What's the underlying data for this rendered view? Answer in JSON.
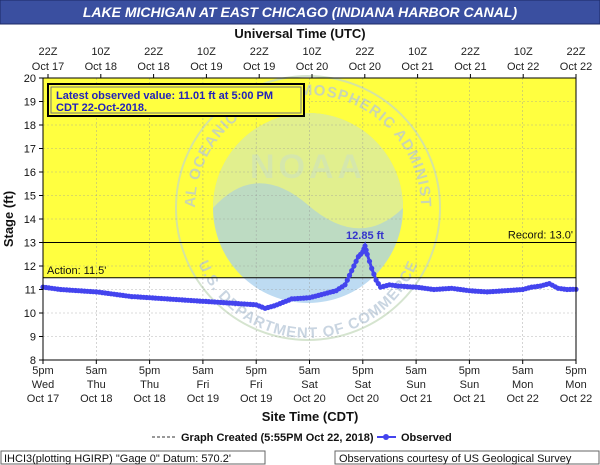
{
  "colors": {
    "title_bar": "#3a4fa0",
    "title_text": "#ffffff",
    "plot_fill": "#ffff40",
    "below_fill": "#ffffff",
    "series": "#4444ee",
    "action_line": "#000000",
    "record_line": "#000000",
    "peak_label": "#3333cc",
    "watermark_circle": "#a8d0ee",
    "watermark_text": "#b0c4dc"
  },
  "chart_data": {
    "type": "line",
    "title": "LAKE MICHIGAN AT EAST CHICAGO (INDIANA HARBOR CANAL)",
    "top_axis_title": "Universal Time (UTC)",
    "top_ticks": [
      {
        "top": "22Z",
        "bottom": "Oct 17"
      },
      {
        "top": "10Z",
        "bottom": "Oct 18"
      },
      {
        "top": "22Z",
        "bottom": "Oct 18"
      },
      {
        "top": "10Z",
        "bottom": "Oct 19"
      },
      {
        "top": "22Z",
        "bottom": "Oct 19"
      },
      {
        "top": "10Z",
        "bottom": "Oct 20"
      },
      {
        "top": "22Z",
        "bottom": "Oct 20"
      },
      {
        "top": "10Z",
        "bottom": "Oct 21"
      },
      {
        "top": "22Z",
        "bottom": "Oct 21"
      },
      {
        "top": "10Z",
        "bottom": "Oct 22"
      },
      {
        "top": "22Z",
        "bottom": "Oct 22"
      }
    ],
    "bottom_ticks": [
      {
        "l1": "5pm",
        "l2": "Wed",
        "l3": "Oct 17"
      },
      {
        "l1": "5am",
        "l2": "Thu",
        "l3": "Oct 18"
      },
      {
        "l1": "5pm",
        "l2": "Thu",
        "l3": "Oct 18"
      },
      {
        "l1": "5am",
        "l2": "Fri",
        "l3": "Oct 19"
      },
      {
        "l1": "5pm",
        "l2": "Fri",
        "l3": "Oct 19"
      },
      {
        "l1": "5am",
        "l2": "Sat",
        "l3": "Oct 20"
      },
      {
        "l1": "5pm",
        "l2": "Sat",
        "l3": "Oct 20"
      },
      {
        "l1": "5am",
        "l2": "Sun",
        "l3": "Oct 21"
      },
      {
        "l1": "5pm",
        "l2": "Sun",
        "l3": "Oct 21"
      },
      {
        "l1": "5am",
        "l2": "Mon",
        "l3": "Oct 22"
      },
      {
        "l1": "5pm",
        "l2": "Mon",
        "l3": "Oct 22"
      }
    ],
    "xlabel": "Site Time (CDT)",
    "ylabel": "Stage (ft)",
    "ylim": [
      8,
      20
    ],
    "yticks": [
      8,
      9,
      10,
      11,
      12,
      13,
      14,
      15,
      16,
      17,
      18,
      19,
      20
    ],
    "x_units": "hours after 5pm CDT Oct 17",
    "xlim": [
      0,
      120
    ],
    "grid": true,
    "thresholds": [
      {
        "name": "Action",
        "label": "Action: 11.5'",
        "value": 11.5
      },
      {
        "name": "Record",
        "label": "Record: 13.0'",
        "value": 13.0
      }
    ],
    "flood_fill_above": 11.5,
    "latest_observed": "Latest observed value: 11.01 ft at 5:00 PM CDT 22-Oct-2018.",
    "peak": {
      "label": "12.85 ft",
      "x": 72.5,
      "y": 12.85
    },
    "series": [
      {
        "name": "Observed",
        "x": [
          0,
          4,
          8,
          12,
          16,
          20,
          24,
          28,
          32,
          36,
          40,
          44,
          48,
          50,
          52,
          54,
          56,
          60,
          62,
          64,
          66,
          68,
          69,
          70,
          71,
          72,
          72.5,
          73,
          74,
          75,
          76,
          78,
          80,
          84,
          88,
          92,
          96,
          100,
          104,
          108,
          110,
          112,
          114,
          116,
          118,
          120
        ],
        "y": [
          11.1,
          11.0,
          10.95,
          10.9,
          10.8,
          10.7,
          10.65,
          10.6,
          10.55,
          10.5,
          10.45,
          10.4,
          10.35,
          10.2,
          10.3,
          10.45,
          10.6,
          10.65,
          10.75,
          10.85,
          10.95,
          11.2,
          11.6,
          12.0,
          12.4,
          12.6,
          12.85,
          12.5,
          11.9,
          11.4,
          11.1,
          11.2,
          11.15,
          11.1,
          11.0,
          11.05,
          10.95,
          10.9,
          10.95,
          11.0,
          11.1,
          11.15,
          11.25,
          11.05,
          11.0,
          11.01
        ]
      }
    ]
  },
  "footer": {
    "legend_graph_created": "Graph Created (5:55PM Oct 22, 2018)",
    "legend_observed": "Observed",
    "left_note": "IHCI3(plotting HGIRP) \"Gage 0\" Datum: 570.2'",
    "right_note": "Observations courtesy of US Geological Survey"
  }
}
